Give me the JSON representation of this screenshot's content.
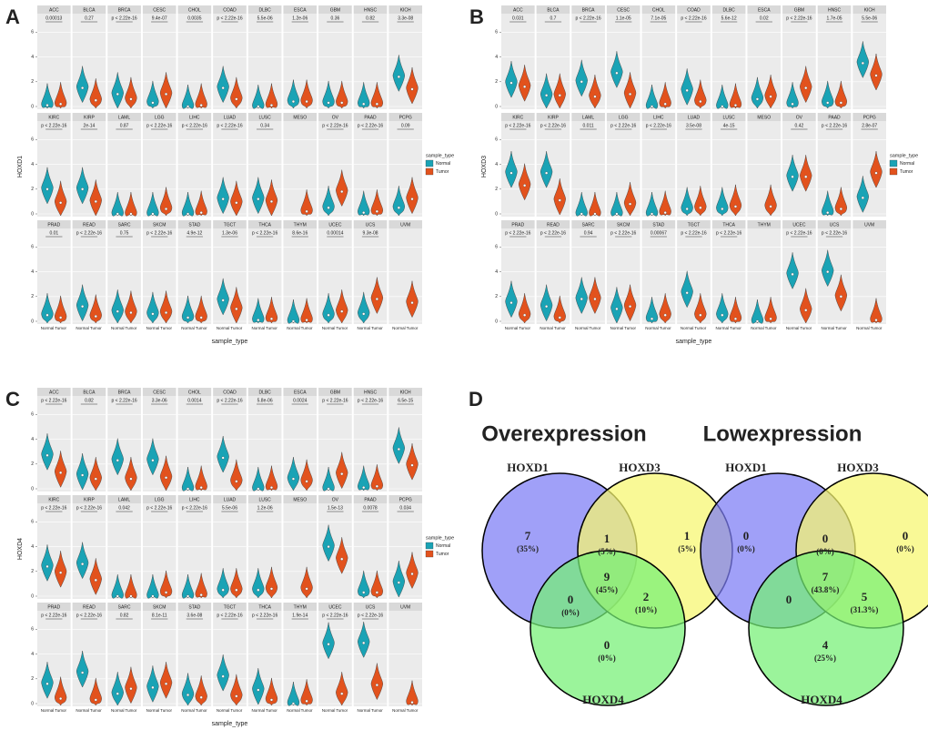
{
  "chart_data": [
    {
      "type": "violin",
      "panel": "A",
      "ylabel": "HOXD1",
      "xlabel": "sample_type",
      "legend_title": "sample_type",
      "groups": [
        {
          "name": "Normal",
          "color": "#1aa3b5"
        },
        {
          "name": "Tumor",
          "color": "#e2521d"
        }
      ],
      "ylim": [
        0,
        7.5
      ],
      "yticks": [
        0,
        2,
        4,
        6
      ],
      "grid": true,
      "facets": [
        {
          "name": "ACC",
          "p": "0.00013",
          "values": [
            0.1,
            0.2
          ]
        },
        {
          "name": "BLCA",
          "p": "0.27",
          "values": [
            1.5,
            0.5
          ]
        },
        {
          "name": "BRCA",
          "p": "p < 2.22e-16",
          "values": [
            1,
            0.6
          ]
        },
        {
          "name": "CESC",
          "p": "9.4e-07",
          "values": [
            0.3,
            1
          ]
        },
        {
          "name": "CHOL",
          "p": "0.0035",
          "values": [
            0,
            0.1
          ]
        },
        {
          "name": "COAD",
          "p": "p < 2.22e-16",
          "values": [
            1.5,
            0.6
          ]
        },
        {
          "name": "DLBC",
          "p": "5.5e-06",
          "values": [
            0,
            0.1
          ]
        },
        {
          "name": "ESCA",
          "p": "1.2e-06",
          "values": [
            0.4,
            0.4
          ]
        },
        {
          "name": "GBM",
          "p": "0.36",
          "values": [
            0.3,
            0.3
          ]
        },
        {
          "name": "HNSC",
          "p": "0.82",
          "values": [
            0.2,
            0.2
          ]
        },
        {
          "name": "KICH",
          "p": "3.3e-08",
          "values": [
            2.4,
            1.4
          ]
        },
        {
          "name": "KIRC",
          "p": "p < 2.22e-16",
          "values": [
            2,
            0.9
          ]
        },
        {
          "name": "KIRP",
          "p": "2e-14",
          "values": [
            2,
            1
          ]
        },
        {
          "name": "LAML",
          "p": "0.87",
          "values": [
            0,
            0
          ]
        },
        {
          "name": "LGG",
          "p": "p < 2.22e-16",
          "values": [
            0,
            0.4
          ]
        },
        {
          "name": "LIHC",
          "p": "p < 2.22e-16",
          "values": [
            0,
            0.1
          ]
        },
        {
          "name": "LUAD",
          "p": "p < 2.22e-16",
          "values": [
            1.2,
            0.9
          ]
        },
        {
          "name": "LUSC",
          "p": "0.34",
          "values": [
            1.2,
            1
          ]
        },
        {
          "name": "MESO",
          "values": [
            null,
            0.2
          ]
        },
        {
          "name": "OV",
          "p": "p < 2.22e-16",
          "values": [
            0.5,
            1.8
          ]
        },
        {
          "name": "PAAD",
          "p": "p < 2.22e-16",
          "values": [
            0.1,
            0.2
          ]
        },
        {
          "name": "PCPG",
          "p": "0.09",
          "values": [
            0.5,
            1.2
          ]
        },
        {
          "name": "PRAD",
          "p": "0.01",
          "values": [
            0.5,
            0.3
          ]
        },
        {
          "name": "READ",
          "p": "p < 2.22e-16",
          "values": [
            1.2,
            0.4
          ]
        },
        {
          "name": "SARC",
          "p": "0.75",
          "values": [
            0.8,
            0.7
          ]
        },
        {
          "name": "SKCM",
          "p": "p < 2.22e-16",
          "values": [
            0.6,
            0.7
          ]
        },
        {
          "name": "STAD",
          "p": "4.9e-12",
          "values": [
            0.3,
            0.3
          ]
        },
        {
          "name": "TGCT",
          "p": "1.3e-06",
          "values": [
            1.7,
            1
          ]
        },
        {
          "name": "THCA",
          "p": "p < 2.22e-16",
          "values": [
            0.1,
            0.2
          ]
        },
        {
          "name": "THYM",
          "p": "8.6e-16",
          "values": [
            0,
            0.1
          ]
        },
        {
          "name": "UCEC",
          "p": "0.00014",
          "values": [
            0.5,
            0.8
          ]
        },
        {
          "name": "UCS",
          "p": "9.3e-08",
          "values": [
            0.6,
            1.8
          ]
        },
        {
          "name": "UVM",
          "values": [
            null,
            1.5
          ]
        }
      ]
    },
    {
      "type": "violin",
      "panel": "B",
      "ylabel": "HOXD3",
      "xlabel": "sample_type",
      "legend_title": "sample_type",
      "groups": [
        {
          "name": "Normal",
          "color": "#1aa3b5"
        },
        {
          "name": "Tumor",
          "color": "#e2521d"
        }
      ],
      "ylim": [
        0,
        7.5
      ],
      "yticks": [
        0,
        2,
        4,
        6
      ],
      "grid": true,
      "facets": [
        {
          "name": "ACC",
          "p": "0.031",
          "values": [
            1.9,
            1.6
          ]
        },
        {
          "name": "BLCA",
          "p": "0.7",
          "values": [
            0.9,
            0.9
          ]
        },
        {
          "name": "BRCA",
          "p": "p < 2.22e-16",
          "values": [
            2,
            0.8
          ]
        },
        {
          "name": "CESC",
          "p": "1.1e-05",
          "values": [
            2.7,
            1
          ]
        },
        {
          "name": "CHOL",
          "p": "7.1e-05",
          "values": [
            0,
            0.2
          ]
        },
        {
          "name": "COAD",
          "p": "p < 2.22e-16",
          "values": [
            1.3,
            0.4
          ]
        },
        {
          "name": "DLBC",
          "p": "5.6e-12",
          "values": [
            0,
            0.1
          ]
        },
        {
          "name": "ESCA",
          "p": "0.02",
          "values": [
            0.6,
            0.8
          ]
        },
        {
          "name": "GBM",
          "p": "p < 2.22e-16",
          "values": [
            0.2,
            1.5
          ]
        },
        {
          "name": "HNSC",
          "p": "1.7e-05",
          "values": [
            0.3,
            0.3
          ]
        },
        {
          "name": "KICH",
          "p": "5.5e-06",
          "values": [
            3.5,
            2.5
          ]
        },
        {
          "name": "KIRC",
          "p": "p < 2.22e-16",
          "values": [
            3.3,
            2.3
          ]
        },
        {
          "name": "KIRP",
          "p": "p < 2.22e-16",
          "values": [
            3.3,
            1.1
          ]
        },
        {
          "name": "LAML",
          "p": "0.011",
          "values": [
            0,
            0
          ]
        },
        {
          "name": "LGG",
          "p": "p < 2.22e-16",
          "values": [
            0,
            0.8
          ]
        },
        {
          "name": "LIHC",
          "p": "p < 2.22e-16",
          "values": [
            0,
            0.1
          ]
        },
        {
          "name": "LUAD",
          "p": "3.5e-08",
          "values": [
            0.4,
            0.5
          ]
        },
        {
          "name": "LUSC",
          "p": "4e-15",
          "values": [
            0.4,
            0.6
          ]
        },
        {
          "name": "MESO",
          "values": [
            null,
            0.6
          ]
        },
        {
          "name": "OV",
          "p": "0.42",
          "values": [
            3,
            3
          ]
        },
        {
          "name": "PAAD",
          "p": "p < 2.22e-16",
          "values": [
            0.1,
            0.4
          ]
        },
        {
          "name": "PCPG",
          "p": "2.8e-07",
          "values": [
            1.3,
            3.3
          ]
        },
        {
          "name": "PRAD",
          "p": "p < 2.22e-16",
          "values": [
            1.5,
            0.5
          ]
        },
        {
          "name": "READ",
          "p": "p < 2.22e-16",
          "values": [
            1.2,
            0.3
          ]
        },
        {
          "name": "SARC",
          "p": "0.94",
          "values": [
            1.8,
            1.8
          ]
        },
        {
          "name": "SKCM",
          "p": "p < 2.22e-16",
          "values": [
            1,
            1.2
          ]
        },
        {
          "name": "STAD",
          "p": "0.00067",
          "values": [
            0.2,
            0.5
          ]
        },
        {
          "name": "TGCT",
          "p": "p < 2.22e-16",
          "values": [
            2.3,
            0.5
          ]
        },
        {
          "name": "THCA",
          "p": "p < 2.22e-16",
          "values": [
            0.5,
            0.2
          ]
        },
        {
          "name": "THYM",
          "values": [
            0,
            0.2
          ]
        },
        {
          "name": "UCEC",
          "p": "p < 2.22e-16",
          "values": [
            3.8,
            0.9
          ]
        },
        {
          "name": "UCS",
          "p": "p < 2.22e-16",
          "values": [
            4,
            2
          ]
        },
        {
          "name": "UVM",
          "values": [
            null,
            0.1
          ]
        }
      ]
    },
    {
      "type": "violin",
      "panel": "C",
      "ylabel": "HOXD4",
      "xlabel": "sample_type",
      "legend_title": "sample_type",
      "groups": [
        {
          "name": "Normal",
          "color": "#1aa3b5"
        },
        {
          "name": "Tumor",
          "color": "#e2521d"
        }
      ],
      "ylim": [
        0,
        7.5
      ],
      "yticks": [
        0,
        2,
        4,
        6
      ],
      "grid": true,
      "facets": [
        {
          "name": "ACC",
          "p": "p < 2.22e-16",
          "values": [
            2.7,
            1.3
          ]
        },
        {
          "name": "BLCA",
          "p": "0.82",
          "values": [
            1.1,
            0.8
          ]
        },
        {
          "name": "BRCA",
          "p": "p < 2.22e-16",
          "values": [
            2.3,
            0.8
          ]
        },
        {
          "name": "CESC",
          "p": "3.3e-06",
          "values": [
            2.3,
            0.9
          ]
        },
        {
          "name": "CHOL",
          "p": "0.0014",
          "values": [
            0,
            0.1
          ]
        },
        {
          "name": "COAD",
          "p": "p < 2.22e-16",
          "values": [
            2.5,
            0.6
          ]
        },
        {
          "name": "DLBC",
          "p": "5.8e-06",
          "values": [
            0,
            0.1
          ]
        },
        {
          "name": "ESCA",
          "p": "0.0024",
          "values": [
            0.8,
            0.6
          ]
        },
        {
          "name": "GBM",
          "p": "p < 2.22e-16",
          "values": [
            0,
            1.2
          ]
        },
        {
          "name": "HNSC",
          "p": "p < 2.22e-16",
          "values": [
            0.1,
            0.2
          ]
        },
        {
          "name": "KICH",
          "p": "6.5e-15",
          "values": [
            3.2,
            1.9
          ]
        },
        {
          "name": "KIRC",
          "p": "p < 2.22e-16",
          "values": [
            2.4,
            1.9
          ]
        },
        {
          "name": "KIRP",
          "p": "p < 2.22e-16",
          "values": [
            2.6,
            1.3
          ]
        },
        {
          "name": "LAML",
          "p": "0.042",
          "values": [
            0,
            0
          ]
        },
        {
          "name": "LGG",
          "p": "p < 2.22e-16",
          "values": [
            0,
            0.3
          ]
        },
        {
          "name": "LIHC",
          "p": "p < 2.22e-16",
          "values": [
            0,
            0.1
          ]
        },
        {
          "name": "LUAD",
          "p": "5.5e-06",
          "values": [
            0.5,
            0.5
          ]
        },
        {
          "name": "LUSC",
          "p": "1.2e-06",
          "values": [
            0.5,
            0.6
          ]
        },
        {
          "name": "MESO",
          "values": [
            null,
            0.6
          ]
        },
        {
          "name": "OV",
          "p": "1.5e-13",
          "values": [
            4,
            3
          ]
        },
        {
          "name": "PAAD",
          "p": "0.0078",
          "values": [
            0.3,
            0.3
          ]
        },
        {
          "name": "PCPG",
          "p": "0.034",
          "values": [
            1.1,
            1.8
          ]
        },
        {
          "name": "PRAD",
          "p": "p < 2.22e-16",
          "values": [
            1.6,
            0.4
          ]
        },
        {
          "name": "READ",
          "p": "p < 2.22e-16",
          "values": [
            2.5,
            0.3
          ]
        },
        {
          "name": "SARC",
          "p": "0.82",
          "values": [
            0.8,
            1.2
          ]
        },
        {
          "name": "SKCM",
          "p": "8.1e-11",
          "values": [
            1.3,
            1.6
          ]
        },
        {
          "name": "STAD",
          "p": "3.6e-08",
          "values": [
            0.7,
            0.5
          ]
        },
        {
          "name": "TGCT",
          "p": "p < 2.22e-16",
          "values": [
            2.2,
            0.6
          ]
        },
        {
          "name": "THCA",
          "p": "p < 2.22e-16",
          "values": [
            1.1,
            0.3
          ]
        },
        {
          "name": "THYM",
          "p": "1.9e-14",
          "values": [
            0,
            0.2
          ]
        },
        {
          "name": "UCEC",
          "p": "p < 2.22e-16",
          "values": [
            4.8,
            0.8
          ]
        },
        {
          "name": "UCS",
          "p": "p < 2.22e-16",
          "values": [
            4.9,
            1.5
          ]
        },
        {
          "name": "UVM",
          "values": [
            null,
            0.1
          ]
        }
      ]
    },
    {
      "type": "venn",
      "panel": "D",
      "title": "Overexpression",
      "sets": [
        {
          "name": "HOXD1",
          "color": "#7b7bf5",
          "label_color": "#2b2bd8"
        },
        {
          "name": "HOXD3",
          "color": "#f7f76e",
          "label_color": "#77772e"
        },
        {
          "name": "HOXD4",
          "color": "#74f074",
          "label_color": "#2a8a2a"
        }
      ],
      "values": [
        7,
        1,
        1,
        0,
        9,
        2,
        0
      ],
      "percents": [
        35,
        5,
        5,
        0,
        45,
        10,
        0
      ],
      "percent_labels": [
        "(35%)",
        "(5%)",
        "(5%)",
        "(0%)",
        "(45%)",
        "(10%)",
        "(0%)"
      ]
    },
    {
      "type": "venn",
      "title": "Lowexpression",
      "sets": [
        {
          "name": "HOXD1",
          "color": "#7b7bf5",
          "label_color": "#2b2bd8"
        },
        {
          "name": "HOXD3",
          "color": "#f7f76e",
          "label_color": "#77772e"
        },
        {
          "name": "HOXD4",
          "color": "#74f074",
          "label_color": "#2a8a2a"
        }
      ],
      "values": [
        0,
        0,
        0,
        0,
        7,
        5,
        4
      ],
      "percents": [
        0,
        0,
        0,
        null,
        43.8,
        31.3,
        25
      ],
      "percent_labels": [
        "(0%)",
        "(0%)",
        "(0%)",
        null,
        "(43.8%)",
        "(31.3%)",
        "(25%)"
      ]
    }
  ]
}
